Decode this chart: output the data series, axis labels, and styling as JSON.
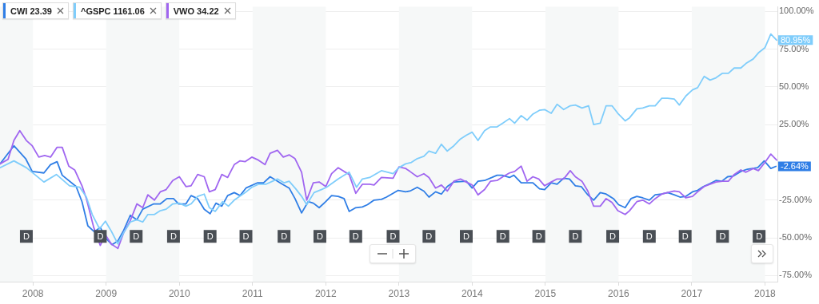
{
  "chart_data": {
    "type": "line",
    "xlim": [
      2007.55,
      2018.17
    ],
    "xticks": [
      2008,
      2009,
      2010,
      2011,
      2012,
      2013,
      2014,
      2015,
      2016,
      2017,
      2018
    ],
    "ylim": [
      -79,
      103
    ],
    "yticks": [
      {
        "value": -75,
        "label": "-75.00%"
      },
      {
        "value": -50,
        "label": "-50.00%"
      },
      {
        "value": -25,
        "label": "-25.00%"
      },
      {
        "value": 25,
        "label": "25.00%"
      },
      {
        "value": 50,
        "label": "50.00%"
      },
      {
        "value": 75,
        "label": "75.00%"
      },
      {
        "value": 100,
        "label": "100.00%"
      }
    ],
    "grid": "y",
    "legend": "top left",
    "marker": "none",
    "line_style": "solid",
    "bands": [
      {
        "axis": "x",
        "from": 2007.55,
        "to": 2008,
        "color": "#f6f8f8"
      },
      {
        "axis": "x",
        "from": 2009,
        "to": 2010,
        "color": "#f6f8f8"
      },
      {
        "axis": "x",
        "from": 2011,
        "to": 2012,
        "color": "#f6f8f8"
      },
      {
        "axis": "x",
        "from": 2013,
        "to": 2014,
        "color": "#f6f8f8"
      },
      {
        "axis": "x",
        "from": 2015,
        "to": 2016,
        "color": "#f6f8f8"
      },
      {
        "axis": "x",
        "from": 2017,
        "to": 2018,
        "color": "#f6f8f8"
      }
    ],
    "annotations": [
      {
        "text": "D",
        "x": 2007.91,
        "y": -49
      },
      {
        "text": "D",
        "x": 2008.92,
        "y": -49
      },
      {
        "text": "D",
        "x": 2009.41,
        "y": -49
      },
      {
        "text": "D",
        "x": 2009.92,
        "y": -49
      },
      {
        "text": "D",
        "x": 2010.42,
        "y": -49
      },
      {
        "text": "D",
        "x": 2010.91,
        "y": -49
      },
      {
        "text": "D",
        "x": 2011.43,
        "y": -49
      },
      {
        "text": "D",
        "x": 2011.92,
        "y": -49
      },
      {
        "text": "D",
        "x": 2012.41,
        "y": -49
      },
      {
        "text": "D",
        "x": 2012.92,
        "y": -49
      },
      {
        "text": "D",
        "x": 2013.41,
        "y": -49
      },
      {
        "text": "D",
        "x": 2013.92,
        "y": -49
      },
      {
        "text": "D",
        "x": 2014.42,
        "y": -49
      },
      {
        "text": "D",
        "x": 2014.91,
        "y": -49
      },
      {
        "text": "D",
        "x": 2015.41,
        "y": -49
      },
      {
        "text": "D",
        "x": 2015.92,
        "y": -49
      },
      {
        "text": "D",
        "x": 2016.42,
        "y": -49
      },
      {
        "text": "D",
        "x": 2016.91,
        "y": -49
      },
      {
        "text": "D",
        "x": 2017.42,
        "y": -49
      },
      {
        "text": "D",
        "x": 2017.92,
        "y": -49
      }
    ],
    "series": [
      {
        "name": "^GSPC 1161.06",
        "color": "#7fcdfb",
        "x": [
          2007.55,
          2007.74,
          2007.91,
          2008.15,
          2008.32,
          2008.5,
          2008.64,
          2008.73,
          2008.81,
          2008.91,
          2008.99,
          2009.07,
          2009.16,
          2009.24,
          2009.33,
          2009.42,
          2009.5,
          2009.57,
          2009.66,
          2009.74,
          2009.82,
          2009.91,
          2010.0,
          2010.09,
          2010.16,
          2010.25,
          2010.34,
          2010.41,
          2010.49,
          2010.59,
          2010.67,
          2010.75,
          2010.9,
          2010.99,
          2011.08,
          2011.18,
          2011.34,
          2011.43,
          2011.5,
          2011.59,
          2011.67,
          2011.74,
          2011.84,
          2011.94,
          2012.01,
          2012.17,
          2012.32,
          2012.42,
          2012.5,
          2012.6,
          2012.76,
          2012.92,
          2013.0,
          2013.09,
          2013.17,
          2013.25,
          2013.34,
          2013.41,
          2013.5,
          2013.58,
          2013.66,
          2013.75,
          2013.84,
          2013.92,
          2014.0,
          2014.08,
          2014.17,
          2014.25,
          2014.34,
          2014.42,
          2014.51,
          2014.58,
          2014.67,
          2014.75,
          2014.83,
          2014.92,
          2014.99,
          2015.08,
          2015.16,
          2015.25,
          2015.34,
          2015.41,
          2015.5,
          2015.59,
          2015.66,
          2015.75,
          2015.83,
          2015.91,
          2015.99,
          2016.09,
          2016.15,
          2016.25,
          2016.33,
          2016.42,
          2016.5,
          2016.59,
          2016.67,
          2016.76,
          2016.83,
          2016.92,
          2017.01,
          2017.08,
          2017.17,
          2017.25,
          2017.33,
          2017.42,
          2017.5,
          2017.58,
          2017.67,
          2017.74,
          2017.84,
          2017.91,
          2018.0,
          2018.08,
          2018.16
        ],
        "values": [
          -3.5,
          1,
          -3.5,
          -13,
          -8,
          -15.5,
          -16.5,
          -23,
          -34.5,
          -44,
          -39,
          -45.5,
          -54,
          -46.5,
          -39.5,
          -38,
          -39.5,
          -34.5,
          -34.5,
          -32,
          -31,
          -27.5,
          -27,
          -29,
          -27.5,
          -22.5,
          -21,
          -30,
          -32.5,
          -26,
          -29,
          -25,
          -20,
          -16.5,
          -14.5,
          -14.5,
          -11,
          -13.5,
          -12.5,
          -17.5,
          -22.5,
          -28,
          -20,
          -18,
          -16.5,
          -11,
          -6.5,
          -16.5,
          -11,
          -10,
          -5.5,
          -7.5,
          -3.5,
          -1,
          0,
          2.5,
          4,
          7.5,
          6,
          12,
          7.5,
          11,
          15.5,
          18,
          20,
          14.5,
          21,
          23.5,
          23.5,
          26,
          29,
          26,
          31,
          28,
          32,
          34.5,
          35,
          32.5,
          38.5,
          35,
          37.5,
          38,
          36,
          37.5,
          25,
          26,
          37.5,
          37.5,
          32.5,
          27.5,
          29.5,
          35.5,
          36,
          37.5,
          37.5,
          42.5,
          42.5,
          42,
          38,
          44,
          48,
          49.5,
          57,
          54.5,
          56,
          59,
          59,
          62.5,
          62.5,
          65.5,
          68.5,
          72.5,
          76,
          85,
          80.95
        ],
        "value_labels": [
          null,
          null,
          null,
          null,
          null,
          null,
          null,
          null,
          null,
          null,
          null,
          null,
          null,
          null,
          null,
          null,
          null,
          null,
          null,
          null,
          null,
          null,
          null,
          null,
          null,
          null,
          null,
          null,
          null,
          null,
          null,
          null,
          null,
          null,
          null,
          null,
          null,
          null,
          null,
          null,
          null,
          null,
          null,
          null,
          null,
          null,
          null,
          null,
          null,
          null,
          null,
          null,
          null,
          null,
          null,
          null,
          null,
          null,
          null,
          null,
          null,
          null,
          null,
          null,
          null,
          null,
          null,
          null,
          null,
          null,
          null,
          null,
          null,
          null,
          null,
          null,
          null,
          null,
          null,
          null,
          null,
          null,
          null,
          null,
          null,
          null,
          null,
          null,
          null,
          null,
          null,
          null,
          null,
          null,
          null,
          null,
          null,
          null,
          null,
          null,
          null,
          null,
          null,
          null,
          null,
          null,
          null,
          null,
          null,
          null,
          null,
          null,
          null,
          null,
          "80.95%"
        ]
      },
      {
        "name": "VWO 34.22",
        "color": "#a066f0",
        "x": [
          2007.55,
          2007.66,
          2007.74,
          2007.82,
          2007.91,
          2007.99,
          2008.08,
          2008.16,
          2008.24,
          2008.33,
          2008.4,
          2008.49,
          2008.57,
          2008.67,
          2008.73,
          2008.83,
          2008.92,
          2008.99,
          2009.07,
          2009.16,
          2009.24,
          2009.33,
          2009.42,
          2009.5,
          2009.57,
          2009.66,
          2009.74,
          2009.82,
          2009.91,
          2010.0,
          2010.09,
          2010.16,
          2010.25,
          2010.34,
          2010.41,
          2010.49,
          2010.58,
          2010.66,
          2010.75,
          2010.83,
          2010.9,
          2010.99,
          2011.08,
          2011.17,
          2011.24,
          2011.34,
          2011.42,
          2011.5,
          2011.58,
          2011.67,
          2011.74,
          2011.83,
          2011.91,
          2012.0,
          2012.08,
          2012.17,
          2012.25,
          2012.32,
          2012.41,
          2012.5,
          2012.6,
          2012.66,
          2012.76,
          2012.92,
          2013.0,
          2013.09,
          2013.15,
          2013.25,
          2013.34,
          2013.41,
          2013.5,
          2013.58,
          2013.66,
          2013.75,
          2013.84,
          2013.92,
          2014.0,
          2014.08,
          2014.17,
          2014.25,
          2014.34,
          2014.42,
          2014.51,
          2014.58,
          2014.67,
          2014.75,
          2014.83,
          2014.91,
          2014.99,
          2015.08,
          2015.16,
          2015.25,
          2015.34,
          2015.41,
          2015.5,
          2015.58,
          2015.66,
          2015.75,
          2015.83,
          2015.91,
          2015.99,
          2016.09,
          2016.15,
          2016.25,
          2016.33,
          2016.42,
          2016.5,
          2016.59,
          2016.67,
          2016.76,
          2016.83,
          2016.92,
          2017.01,
          2017.08,
          2017.17,
          2017.25,
          2017.33,
          2017.42,
          2017.5,
          2017.58,
          2017.67,
          2017.74,
          2017.84,
          2017.91,
          2018.0,
          2018.08,
          2018.16
        ],
        "values": [
          -1,
          2,
          14.5,
          21,
          14.5,
          11,
          3.5,
          4.5,
          3.5,
          10,
          10,
          -2.5,
          -5,
          -15.5,
          -24,
          -43,
          -55,
          -48,
          -54,
          -57,
          -46.5,
          -38.5,
          -27.5,
          -30,
          -21.5,
          -25,
          -19.5,
          -18,
          -12,
          -9.5,
          -16,
          -15.5,
          -8,
          -9.5,
          -19.5,
          -18,
          -8,
          -10,
          -1.5,
          1,
          0.5,
          3.5,
          1.5,
          -1.5,
          6,
          8,
          3.5,
          5,
          2.5,
          -6.5,
          -25,
          -13.5,
          -13,
          -16,
          -7.5,
          -3.5,
          -6,
          -8,
          -20.5,
          -14.5,
          -14.5,
          -15,
          -10,
          -10.5,
          -3,
          -4,
          -6,
          -9.5,
          -7.5,
          -10,
          -17,
          -15,
          -19,
          -12.5,
          -11,
          -13,
          -15,
          -21.5,
          -18,
          -12.5,
          -12,
          -9.5,
          -7,
          -6,
          -2.5,
          -12.5,
          -9.5,
          -11,
          -15.5,
          -13,
          -11,
          -11,
          -5.5,
          -9.5,
          -12.5,
          -19,
          -29,
          -29,
          -24,
          -26.5,
          -32,
          -34.5,
          -32,
          -26,
          -25,
          -27.5,
          -24,
          -21,
          -20,
          -19,
          -19.5,
          -23.5,
          -22.5,
          -19.5,
          -16,
          -14.5,
          -13,
          -12.5,
          -12.5,
          -8,
          -5,
          -6.5,
          -4,
          -5.5,
          0,
          5.5,
          1.5
        ]
      },
      {
        "name": "CWI 23.39",
        "color": "#2f7ee6",
        "x": [
          2007.55,
          2007.74,
          2007.9,
          2007.99,
          2008.15,
          2008.24,
          2008.33,
          2008.4,
          2008.59,
          2008.67,
          2008.75,
          2008.84,
          2008.92,
          2008.99,
          2009.08,
          2009.16,
          2009.24,
          2009.33,
          2009.42,
          2009.5,
          2009.65,
          2009.74,
          2009.83,
          2009.92,
          2009.99,
          2010.09,
          2010.16,
          2010.25,
          2010.34,
          2010.42,
          2010.5,
          2010.58,
          2010.66,
          2010.75,
          2010.83,
          2010.91,
          2011.07,
          2011.15,
          2011.24,
          2011.41,
          2011.5,
          2011.58,
          2011.67,
          2011.76,
          2011.83,
          2011.91,
          2012.0,
          2012.08,
          2012.17,
          2012.25,
          2012.32,
          2012.41,
          2012.5,
          2012.57,
          2012.66,
          2012.76,
          2012.83,
          2012.92,
          2012.99,
          2013.09,
          2013.15,
          2013.25,
          2013.34,
          2013.41,
          2013.5,
          2013.58,
          2013.66,
          2013.75,
          2013.92,
          2014.0,
          2014.08,
          2014.17,
          2014.27,
          2014.34,
          2014.41,
          2014.51,
          2014.57,
          2014.67,
          2014.83,
          2014.92,
          2014.99,
          2015.08,
          2015.16,
          2015.25,
          2015.33,
          2015.41,
          2015.49,
          2015.58,
          2015.66,
          2015.75,
          2015.83,
          2015.93,
          2016.0,
          2016.09,
          2016.17,
          2016.25,
          2016.33,
          2016.42,
          2016.5,
          2016.59,
          2016.67,
          2016.76,
          2016.84,
          2016.92,
          2017.01,
          2017.08,
          2017.16,
          2017.25,
          2017.33,
          2017.41,
          2017.49,
          2017.57,
          2017.67,
          2017.76,
          2017.9,
          2017.99,
          2018.08,
          2018.15
        ],
        "values": [
          -1,
          11,
          2.5,
          -6,
          -7,
          -1.5,
          0.5,
          -8.5,
          -16,
          -26,
          -42,
          -46,
          -43,
          -50,
          -54.5,
          -52,
          -45,
          -35,
          -38,
          -31,
          -27.5,
          -27.5,
          -24,
          -24,
          -27.5,
          -27.5,
          -22,
          -24,
          -31,
          -34,
          -27,
          -29,
          -22,
          -20,
          -22,
          -17,
          -13.5,
          -13.5,
          -9.5,
          -14.5,
          -17,
          -24,
          -33.5,
          -26,
          -27,
          -30,
          -26,
          -22,
          -22.5,
          -24,
          -32.5,
          -30,
          -29.5,
          -28,
          -25,
          -24.5,
          -23,
          -20.5,
          -18.5,
          -19.5,
          -19,
          -16.5,
          -19,
          -23,
          -19.5,
          -21,
          -16,
          -13,
          -12.5,
          -17,
          -12.5,
          -12,
          -10,
          -8.5,
          -8.5,
          -10,
          -8.5,
          -13.5,
          -13.5,
          -17.5,
          -18,
          -13.5,
          -14.5,
          -10.5,
          -11,
          -15.5,
          -16,
          -21.5,
          -25,
          -20,
          -21,
          -24,
          -28,
          -30,
          -24,
          -22.5,
          -23.5,
          -25,
          -21.5,
          -21,
          -20,
          -21.5,
          -23,
          -22.5,
          -19.5,
          -18.5,
          -16,
          -14,
          -12,
          -12.5,
          -9.5,
          -9,
          -6,
          -4.5,
          -3.5,
          1,
          -4,
          -2.64
        ],
        "value_labels": [
          null,
          null,
          null,
          null,
          null,
          null,
          null,
          null,
          null,
          null,
          null,
          null,
          null,
          null,
          null,
          null,
          null,
          null,
          null,
          null,
          null,
          null,
          null,
          null,
          null,
          null,
          null,
          null,
          null,
          null,
          null,
          null,
          null,
          null,
          null,
          null,
          null,
          null,
          null,
          null,
          null,
          null,
          null,
          null,
          null,
          null,
          null,
          null,
          null,
          null,
          null,
          null,
          null,
          null,
          null,
          null,
          null,
          null,
          null,
          null,
          null,
          null,
          null,
          null,
          null,
          null,
          null,
          null,
          null,
          null,
          null,
          null,
          null,
          null,
          null,
          null,
          null,
          null,
          null,
          null,
          null,
          null,
          null,
          null,
          null,
          null,
          null,
          null,
          null,
          null,
          null,
          null,
          null,
          null,
          null,
          null,
          null,
          null,
          null,
          null,
          null,
          null,
          null,
          null,
          null,
          null,
          null,
          null,
          null,
          null,
          null,
          null,
          null,
          null,
          null,
          null,
          null,
          "-2.64%"
        ]
      }
    ]
  }
}
